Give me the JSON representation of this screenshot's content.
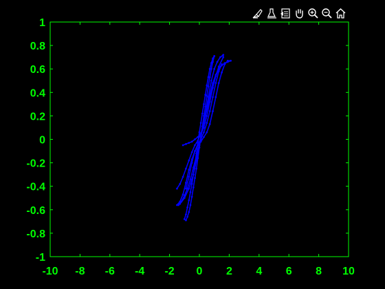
{
  "toolbar": {
    "buttons": [
      {
        "name": "brush-icon"
      },
      {
        "name": "data-cursor-icon"
      },
      {
        "name": "restore-view-icon"
      },
      {
        "name": "pan-hand-icon"
      },
      {
        "name": "zoom-in-icon"
      },
      {
        "name": "zoom-out-icon"
      },
      {
        "name": "home-icon"
      }
    ]
  },
  "chart_data": {
    "type": "line",
    "title": "",
    "xlabel": "",
    "ylabel": "",
    "xlim": [
      -10,
      10
    ],
    "ylim": [
      -1,
      1
    ],
    "xticks": [
      -10,
      -8,
      -6,
      -4,
      -2,
      0,
      2,
      4,
      6,
      8,
      10
    ],
    "yticks": [
      -1,
      -0.8,
      -0.6,
      -0.4,
      -0.2,
      0,
      0.2,
      0.4,
      0.6,
      0.8,
      1
    ],
    "xtick_labels": [
      "-10",
      "-8",
      "-6",
      "-4",
      "-2",
      "0",
      "2",
      "4",
      "6",
      "8",
      "10"
    ],
    "ytick_labels": [
      "-1",
      "-0.8",
      "-0.6",
      "-0.4",
      "-0.2",
      "0",
      "0.2",
      "0.4",
      "0.6",
      "0.8",
      "1"
    ],
    "grid": false,
    "colors": {
      "background": "#000000",
      "axes": "#00ff00",
      "series": "#0000ff"
    },
    "series": [
      {
        "marker": ".",
        "x": [
          -1.5,
          -1.3,
          -1.1,
          -0.9,
          -0.7,
          -0.5,
          -0.3,
          -0.1,
          0.1,
          0.3,
          0.5,
          0.7,
          0.9,
          1.1,
          1.3,
          1.5,
          1.7,
          1.9,
          2.1,
          1.9,
          1.7,
          1.5,
          1.3,
          1.1,
          0.9,
          0.7,
          0.5,
          0.3,
          0.1,
          -0.1,
          -0.3,
          -0.5,
          -0.7,
          -0.9,
          -1.1,
          -1.3,
          -1.5
        ],
        "y": [
          -0.42,
          -0.38,
          -0.32,
          -0.25,
          -0.18,
          -0.11,
          -0.05,
          -0.01,
          0.05,
          0.14,
          0.26,
          0.38,
          0.48,
          0.55,
          0.6,
          0.63,
          0.65,
          0.66,
          0.67,
          0.67,
          0.64,
          0.57,
          0.48,
          0.36,
          0.24,
          0.13,
          0.06,
          0.02,
          -0.02,
          -0.05,
          -0.1,
          -0.17,
          -0.26,
          -0.37,
          -0.47,
          -0.53,
          -0.56
        ]
      },
      {
        "marker": ".",
        "x": [
          -1.3,
          -1.0,
          -0.7,
          -0.4,
          -0.2,
          0.0,
          0.2,
          0.4,
          0.6,
          0.8,
          1.0,
          1.2,
          1.4,
          1.6,
          1.6,
          1.3,
          1.0,
          0.7,
          0.4,
          0.2,
          0.0,
          -0.2,
          -0.4,
          -0.6,
          -0.8,
          -1.0,
          -1.2,
          -1.4
        ],
        "y": [
          -0.55,
          -0.5,
          -0.42,
          -0.3,
          -0.18,
          -0.05,
          0.08,
          0.22,
          0.36,
          0.5,
          0.6,
          0.66,
          0.7,
          0.72,
          0.7,
          0.62,
          0.5,
          0.35,
          0.2,
          0.08,
          -0.04,
          -0.14,
          -0.24,
          -0.34,
          -0.42,
          -0.48,
          -0.53,
          -0.56
        ]
      },
      {
        "marker": ".",
        "x": [
          -1.0,
          -0.9,
          -0.8,
          -0.7,
          -0.6,
          -0.5,
          -0.4,
          -0.3,
          -0.2,
          -0.1,
          0.0,
          0.1,
          0.2,
          0.3,
          0.4,
          0.5,
          0.6,
          0.7,
          0.8,
          0.9,
          1.0,
          0.9,
          0.8,
          0.7,
          0.6,
          0.5,
          0.4,
          0.3,
          0.2,
          0.1,
          0.0,
          -0.1,
          -0.2,
          -0.3,
          -0.4,
          -0.5,
          -0.6,
          -0.7,
          -0.8,
          -0.9
        ],
        "y": [
          -0.68,
          -0.64,
          -0.58,
          -0.52,
          -0.45,
          -0.38,
          -0.3,
          -0.21,
          -0.12,
          -0.03,
          0.06,
          0.14,
          0.22,
          0.3,
          0.38,
          0.46,
          0.53,
          0.6,
          0.65,
          0.69,
          0.71,
          0.66,
          0.6,
          0.53,
          0.45,
          0.37,
          0.28,
          0.2,
          0.11,
          0.02,
          -0.07,
          -0.16,
          -0.25,
          -0.33,
          -0.41,
          -0.49,
          -0.56,
          -0.62,
          -0.66,
          -0.69
        ]
      },
      {
        "marker": ".",
        "x": [
          -1.1,
          -0.9,
          -0.7,
          -0.5,
          -0.3,
          -0.1,
          0.1,
          0.3,
          0.5,
          0.7,
          0.9,
          1.1,
          1.3,
          1.5,
          1.3,
          1.1,
          0.9,
          0.7,
          0.5,
          0.3,
          0.1,
          -0.1,
          -0.3,
          -0.5,
          -0.7,
          -0.9
        ],
        "y": [
          -0.05,
          -0.04,
          -0.03,
          -0.02,
          0.0,
          0.02,
          0.05,
          0.1,
          0.2,
          0.32,
          0.44,
          0.54,
          0.6,
          0.64,
          0.58,
          0.48,
          0.36,
          0.24,
          0.14,
          0.06,
          0.0,
          -0.04,
          -0.1,
          -0.2,
          -0.32,
          -0.42
        ]
      }
    ]
  }
}
